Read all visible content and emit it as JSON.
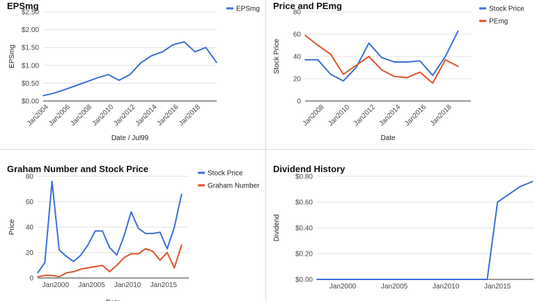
{
  "colors": {
    "blue": "#3b6fd4",
    "red": "#e0522a",
    "grid": "#e0e0e0",
    "axis": "#333333"
  },
  "chart_data": [
    {
      "type": "line",
      "title": "EPSmg",
      "xlabel": "Date / Jul99",
      "ylabel": "EPSmg",
      "x_ticks": [
        "Jan2004",
        "Jan2006",
        "Jan2008",
        "Jan2010",
        "Jan2012",
        "Jan2014",
        "Jan2016",
        "Jan2018"
      ],
      "y_ticks": [
        "$0.00",
        "$0.50",
        "$1.00",
        "$1.50",
        "$2.00",
        "$2.50"
      ],
      "xlim": [
        2003.5,
        2019.5
      ],
      "ylim": [
        0,
        2.5
      ],
      "grid": true,
      "legend": "top-right",
      "series": [
        {
          "name": "EPSmg",
          "color": "#3b6fd4",
          "x": [
            2003.5,
            2004.5,
            2005.5,
            2006.5,
            2007.5,
            2008.5,
            2009.5,
            2010.5,
            2011.5,
            2012.5,
            2013.5,
            2014.5,
            2015.5,
            2016.5,
            2017.5,
            2018.5,
            2019.5
          ],
          "y": [
            0.15,
            0.22,
            0.32,
            0.43,
            0.54,
            0.65,
            0.74,
            0.58,
            0.74,
            1.07,
            1.27,
            1.38,
            1.58,
            1.66,
            1.38,
            1.5,
            1.08
          ]
        }
      ]
    },
    {
      "type": "line",
      "title": "Price and PEmg",
      "xlabel": "Date",
      "ylabel": "Stock Price",
      "x_ticks": [
        "Jan2008",
        "Jan2010",
        "Jan2012",
        "Jan2014",
        "Jan2016",
        "Jan2018"
      ],
      "y_ticks": [
        "0",
        "20",
        "40",
        "60",
        "80"
      ],
      "xlim": [
        2006.5,
        2019.5
      ],
      "ylim": [
        0,
        80
      ],
      "grid": true,
      "legend": "top-right",
      "series": [
        {
          "name": "Stock Price",
          "color": "#3b6fd4",
          "x": [
            2006.5,
            2007.5,
            2008.5,
            2009.5,
            2010.5,
            2011.5,
            2012.5,
            2013.5,
            2014.5,
            2015.5,
            2016.5,
            2017.5,
            2018.5,
            2019.5
          ],
          "y": [
            37,
            37,
            24,
            18,
            30,
            52,
            39,
            35,
            35,
            36,
            23,
            40,
            63,
            null
          ]
        },
        {
          "name": "PEmg",
          "color": "#e0522a",
          "x": [
            2006.5,
            2007.5,
            2008.5,
            2009.5,
            2010.5,
            2011.5,
            2012.5,
            2013.5,
            2014.5,
            2015.5,
            2016.5,
            2017.5,
            2018.5,
            2019.5
          ],
          "y": [
            59,
            50,
            42,
            24,
            32,
            40,
            28,
            22,
            21,
            26,
            16,
            37,
            31,
            null
          ]
        }
      ]
    },
    {
      "type": "line",
      "title": "Graham Number and Stock Price",
      "xlabel": "Date",
      "ylabel": "Price",
      "x_ticks": [
        "Jan2000",
        "Jan2005",
        "Jan2010",
        "Jan2015"
      ],
      "y_ticks": [
        "0",
        "20",
        "40",
        "60",
        "80"
      ],
      "xlim": [
        1997.5,
        2018.5
      ],
      "ylim": [
        0,
        80
      ],
      "grid": true,
      "legend": "top-right",
      "series": [
        {
          "name": "Stock Price",
          "color": "#3b6fd4",
          "x": [
            1997.5,
            1998.5,
            1999.5,
            2000.5,
            2001.5,
            2002.5,
            2003.5,
            2004.5,
            2005.5,
            2006.5,
            2007.5,
            2008.5,
            2009.5,
            2010.5,
            2011.5,
            2012.5,
            2013.5,
            2014.5,
            2015.5,
            2016.5,
            2017.5,
            2018.5
          ],
          "y": [
            4,
            12,
            76,
            22,
            17,
            13,
            18,
            26,
            37,
            37,
            24,
            18,
            33,
            52,
            39,
            35,
            35,
            36,
            23,
            40,
            66,
            null
          ]
        },
        {
          "name": "Graham Number",
          "color": "#e0522a",
          "x": [
            1997.5,
            1998.5,
            1999.5,
            2000.5,
            2001.5,
            2002.5,
            2003.5,
            2004.5,
            2005.5,
            2006.5,
            2007.5,
            2008.5,
            2009.5,
            2010.5,
            2011.5,
            2012.5,
            2013.5,
            2014.5,
            2015.5,
            2016.5,
            2017.5,
            2018.5
          ],
          "y": [
            1,
            2,
            2,
            1,
            4,
            5,
            7,
            8,
            9,
            10,
            5,
            10,
            16,
            19,
            19,
            23,
            21,
            14,
            20,
            8,
            26,
            null
          ]
        }
      ]
    },
    {
      "type": "line",
      "title": "Dividend History",
      "xlabel": "",
      "ylabel": "Dividend",
      "x_ticks": [
        "Jan2000",
        "Jan2005",
        "Jan2010",
        "Jan2015"
      ],
      "y_ticks": [
        "$0.00",
        "$0.20",
        "$0.40",
        "$0.60",
        "$0.80"
      ],
      "xlim": [
        1997.5,
        2018.5
      ],
      "ylim": [
        0,
        0.8
      ],
      "grid": true,
      "legend": "none",
      "series": [
        {
          "color": "#3b6fd4",
          "x": [
            1997.5,
            2014.0,
            2015.0,
            2017.2,
            2018.4
          ],
          "y": [
            0,
            0,
            0.6,
            0.72,
            0.76
          ]
        }
      ]
    }
  ]
}
